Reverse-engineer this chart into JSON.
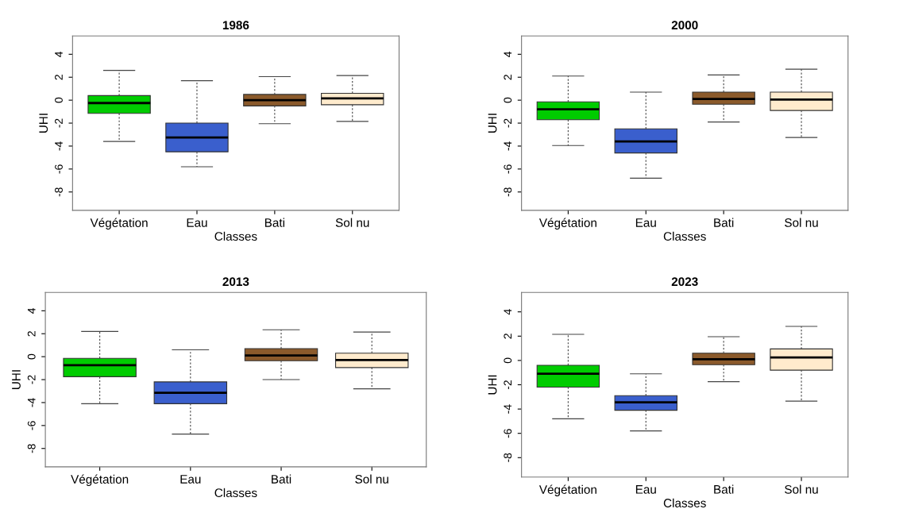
{
  "chart_data": [
    {
      "type": "box",
      "title": "1986",
      "xlabel": "Classes",
      "ylabel": "UHI",
      "categories": [
        "Végétation",
        "Eau",
        "Bati",
        "Sol nu"
      ],
      "colors": [
        "#00cc00",
        "#3a5fcd",
        "#8b5a2b",
        "#ffebcd"
      ],
      "ylim": [
        -9.6,
        5.6
      ],
      "yticks": [
        -8,
        -6,
        -4,
        -2,
        0,
        2,
        4
      ],
      "grid": false,
      "legend": false,
      "boxes": [
        {
          "low": -3.6,
          "q1": -1.15,
          "median": -0.25,
          "q3": 0.4,
          "high": 2.6
        },
        {
          "low": -5.8,
          "q1": -4.5,
          "median": -3.25,
          "q3": -2.0,
          "high": 1.7
        },
        {
          "low": -2.05,
          "q1": -0.5,
          "median": 0.0,
          "q3": 0.5,
          "high": 2.05
        },
        {
          "low": -1.85,
          "q1": -0.4,
          "median": 0.15,
          "q3": 0.6,
          "high": 2.15
        }
      ]
    },
    {
      "type": "box",
      "title": "2000",
      "xlabel": "Classes",
      "ylabel": "UHI",
      "categories": [
        "Végétation",
        "Eau",
        "Bati",
        "Sol nu"
      ],
      "colors": [
        "#00cc00",
        "#3a5fcd",
        "#8b5a2b",
        "#ffebcd"
      ],
      "ylim": [
        -9.6,
        5.6
      ],
      "yticks": [
        -8,
        -6,
        -4,
        -2,
        0,
        2,
        4
      ],
      "grid": false,
      "legend": false,
      "boxes": [
        {
          "low": -3.95,
          "q1": -1.7,
          "median": -0.8,
          "q3": -0.15,
          "high": 2.1
        },
        {
          "low": -6.8,
          "q1": -4.6,
          "median": -3.6,
          "q3": -2.5,
          "high": 0.7
        },
        {
          "low": -1.9,
          "q1": -0.35,
          "median": 0.1,
          "q3": 0.7,
          "high": 2.2
        },
        {
          "low": -3.25,
          "q1": -0.9,
          "median": 0.05,
          "q3": 0.7,
          "high": 2.7
        }
      ]
    },
    {
      "type": "box",
      "title": "2013",
      "xlabel": "Classes",
      "ylabel": "UHI",
      "categories": [
        "Végétation",
        "Eau",
        "Bati",
        "Sol nu"
      ],
      "colors": [
        "#00cc00",
        "#3a5fcd",
        "#8b5a2b",
        "#ffebcd"
      ],
      "ylim": [
        -9.6,
        5.6
      ],
      "yticks": [
        -8,
        -6,
        -4,
        -2,
        0,
        2,
        4
      ],
      "grid": false,
      "legend": false,
      "boxes": [
        {
          "low": -4.1,
          "q1": -1.75,
          "median": -0.75,
          "q3": -0.15,
          "high": 2.2
        },
        {
          "low": -6.75,
          "q1": -4.1,
          "median": -3.15,
          "q3": -2.2,
          "high": 0.6
        },
        {
          "low": -2.0,
          "q1": -0.35,
          "median": 0.1,
          "q3": 0.7,
          "high": 2.35
        },
        {
          "low": -2.8,
          "q1": -0.95,
          "median": -0.3,
          "q3": 0.3,
          "high": 2.15
        }
      ]
    },
    {
      "type": "box",
      "title": "2023",
      "xlabel": "Classes",
      "ylabel": "UHI",
      "categories": [
        "Végétation",
        "Eau",
        "Bati",
        "Sol nu"
      ],
      "colors": [
        "#00cc00",
        "#3a5fcd",
        "#8b5a2b",
        "#ffebcd"
      ],
      "ylim": [
        -9.6,
        5.6
      ],
      "yticks": [
        -8,
        -6,
        -4,
        -2,
        0,
        2,
        4
      ],
      "grid": false,
      "legend": false,
      "boxes": [
        {
          "low": -4.8,
          "q1": -2.2,
          "median": -1.1,
          "q3": -0.4,
          "high": 2.15
        },
        {
          "low": -5.8,
          "q1": -4.1,
          "median": -3.45,
          "q3": -2.9,
          "high": -1.1
        },
        {
          "low": -1.75,
          "q1": -0.35,
          "median": 0.1,
          "q3": 0.6,
          "high": 1.95
        },
        {
          "low": -3.35,
          "q1": -0.8,
          "median": 0.25,
          "q3": 0.95,
          "high": 2.8
        }
      ]
    }
  ]
}
